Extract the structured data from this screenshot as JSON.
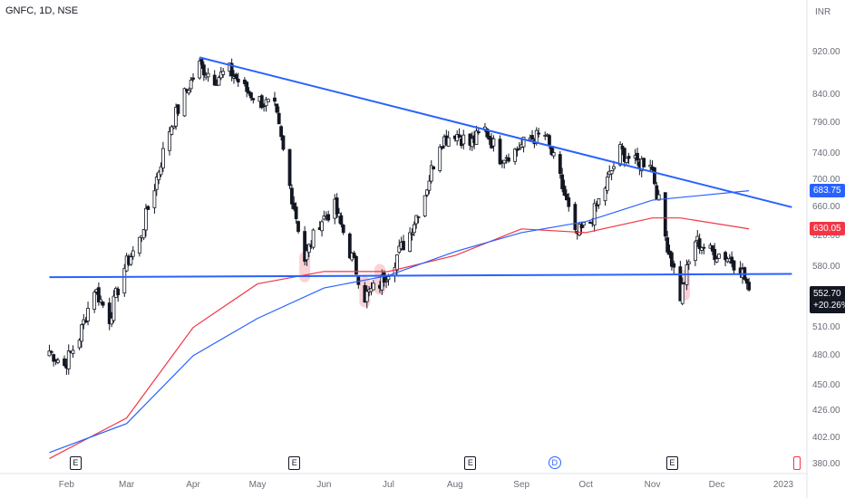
{
  "header": {
    "ticker": "GNFC, 1D, NSE",
    "currency": "INR"
  },
  "chart_data": {
    "type": "candlestick",
    "y_scale": "log",
    "ylim": [
      375,
      990
    ],
    "y_ticks": [
      "920.00",
      "840.00",
      "790.00",
      "740.00",
      "700.00",
      "660.00",
      "620.00",
      "580.00",
      "545.00",
      "510.00",
      "480.00",
      "450.00",
      "426.00",
      "402.00",
      "380.00"
    ],
    "x_ticks": [
      "Feb",
      "Mar",
      "Apr",
      "May",
      "Jun",
      "Jul",
      "Aug",
      "Sep",
      "Oct",
      "Nov",
      "Dec",
      "2023"
    ],
    "series": [
      {
        "name": "",
        "type": "ohlc",
        "color_up": "#131722",
        "color_down": "#131722",
        "keypoints": [
          [
            "2022-01-24",
            485
          ],
          [
            "2022-01-31",
            470
          ],
          [
            "2022-02-07",
            500
          ],
          [
            "2022-02-14",
            555
          ],
          [
            "2022-02-21",
            520
          ],
          [
            "2022-02-28",
            580
          ],
          [
            "2022-03-07",
            615
          ],
          [
            "2022-03-14",
            690
          ],
          [
            "2022-03-21",
            780
          ],
          [
            "2022-03-28",
            840
          ],
          [
            "2022-04-04",
            895
          ],
          [
            "2022-04-11",
            870
          ],
          [
            "2022-04-18",
            885
          ],
          [
            "2022-04-25",
            850
          ],
          [
            "2022-05-02",
            830
          ],
          [
            "2022-05-09",
            815
          ],
          [
            "2022-05-16",
            690
          ],
          [
            "2022-05-23",
            590
          ],
          [
            "2022-05-30",
            640
          ],
          [
            "2022-06-06",
            660
          ],
          [
            "2022-06-13",
            600
          ],
          [
            "2022-06-20",
            545
          ],
          [
            "2022-06-27",
            560
          ],
          [
            "2022-07-04",
            590
          ],
          [
            "2022-07-11",
            625
          ],
          [
            "2022-07-18",
            680
          ],
          [
            "2022-07-25",
            760
          ],
          [
            "2022-08-01",
            775
          ],
          [
            "2022-08-08",
            755
          ],
          [
            "2022-08-15",
            780
          ],
          [
            "2022-08-22",
            735
          ],
          [
            "2022-08-29",
            745
          ],
          [
            "2022-09-05",
            765
          ],
          [
            "2022-09-12",
            770
          ],
          [
            "2022-09-19",
            700
          ],
          [
            "2022-09-26",
            620
          ],
          [
            "2022-10-03",
            640
          ],
          [
            "2022-10-10",
            690
          ],
          [
            "2022-10-17",
            745
          ],
          [
            "2022-10-24",
            725
          ],
          [
            "2022-10-31",
            730
          ],
          [
            "2022-11-07",
            620
          ],
          [
            "2022-11-14",
            545
          ],
          [
            "2022-11-21",
            615
          ],
          [
            "2022-11-28",
            600
          ],
          [
            "2022-12-05",
            595
          ],
          [
            "2022-12-12",
            580
          ],
          [
            "2022-12-16",
            552.7
          ]
        ]
      },
      {
        "name": "",
        "type": "line",
        "color": "#f23645",
        "points": [
          [
            "2022-01-24",
            385
          ],
          [
            "2022-03-01",
            420
          ],
          [
            "2022-04-01",
            510
          ],
          [
            "2022-05-01",
            560
          ],
          [
            "2022-06-01",
            575
          ],
          [
            "2022-07-01",
            575
          ],
          [
            "2022-08-01",
            595
          ],
          [
            "2022-09-01",
            630
          ],
          [
            "2022-10-01",
            625
          ],
          [
            "2022-11-01",
            645
          ],
          [
            "2022-11-14",
            645
          ],
          [
            "2022-12-16",
            630.05
          ]
        ]
      },
      {
        "name": "",
        "type": "line",
        "color": "#2962ff",
        "points": [
          [
            "2022-01-24",
            390
          ],
          [
            "2022-03-01",
            415
          ],
          [
            "2022-04-01",
            480
          ],
          [
            "2022-05-01",
            520
          ],
          [
            "2022-06-01",
            555
          ],
          [
            "2022-07-01",
            570
          ],
          [
            "2022-08-01",
            600
          ],
          [
            "2022-09-01",
            625
          ],
          [
            "2022-10-01",
            640
          ],
          [
            "2022-11-01",
            670
          ],
          [
            "2022-12-16",
            683.75
          ]
        ]
      }
    ],
    "trendlines": [
      {
        "kind": "resistance",
        "color": "#2962ff",
        "from": [
          "2022-04-04",
          910
        ],
        "to": [
          "2023-01-05",
          660
        ]
      },
      {
        "kind": "support",
        "color": "#2962ff",
        "from": [
          "2022-01-24",
          568
        ],
        "to": [
          "2023-01-05",
          572
        ]
      }
    ],
    "highlights": [
      [
        "2022-05-23",
        575
      ],
      [
        "2022-06-20",
        545
      ],
      [
        "2022-06-27",
        560
      ],
      [
        "2022-11-16",
        553
      ]
    ],
    "price_labels": [
      {
        "value": "683.75",
        "color": "#2962ff"
      },
      {
        "value": "630.05",
        "color": "#f23645"
      }
    ],
    "last_price": {
      "value": "552.70",
      "change": "+20.26%"
    },
    "events": [
      {
        "x": "2022-02-05",
        "label": "E",
        "kind": "earnings"
      },
      {
        "x": "2022-05-18",
        "label": "E",
        "kind": "earnings"
      },
      {
        "x": "2022-08-08",
        "label": "E",
        "kind": "earnings"
      },
      {
        "x": "2022-09-16",
        "label": "D",
        "kind": "dividend"
      },
      {
        "x": "2022-11-10",
        "label": "E",
        "kind": "earnings"
      },
      {
        "x": "2023-01-08",
        "label": "",
        "kind": "split"
      }
    ]
  }
}
